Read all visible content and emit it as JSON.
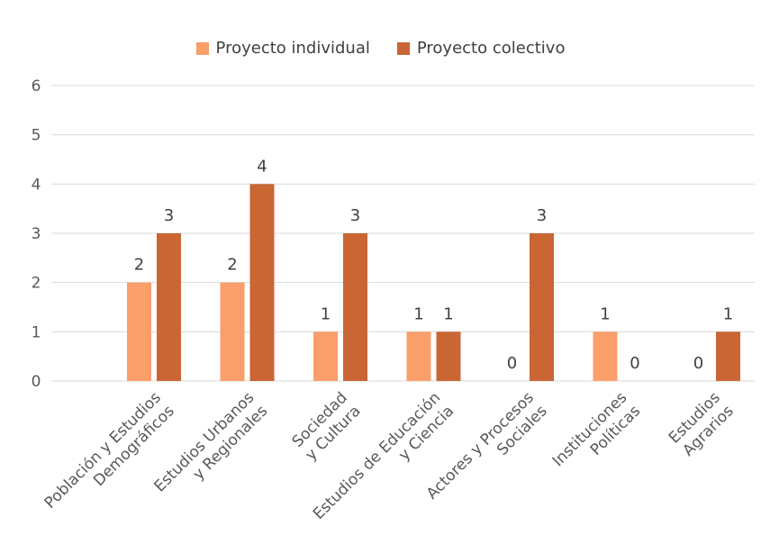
{
  "chart_data": {
    "type": "bar",
    "categories": [
      [
        "Población y Estudios",
        "Demográficos"
      ],
      [
        "Estudios Urbanos",
        "y Regionales"
      ],
      [
        "Sociedad",
        "y Cultura"
      ],
      [
        "Estudios de Educación",
        "y Ciencia"
      ],
      [
        "Actores y Procesos",
        "Sociales"
      ],
      [
        "Instituciones",
        "Políticas"
      ],
      [
        "Estudios",
        "Agrarios"
      ]
    ],
    "series": [
      {
        "name": "Proyecto individual",
        "color": "#FA9E6A",
        "values": [
          2,
          2,
          1,
          1,
          0,
          1,
          0
        ]
      },
      {
        "name": "Proyecto colectivo",
        "color": "#C96634",
        "values": [
          3,
          4,
          3,
          1,
          3,
          0,
          1
        ]
      }
    ],
    "ylim": [
      0,
      6
    ],
    "yticks": [
      0,
      1,
      2,
      3,
      4,
      5,
      6
    ],
    "grid": true,
    "legend_position": "top"
  }
}
